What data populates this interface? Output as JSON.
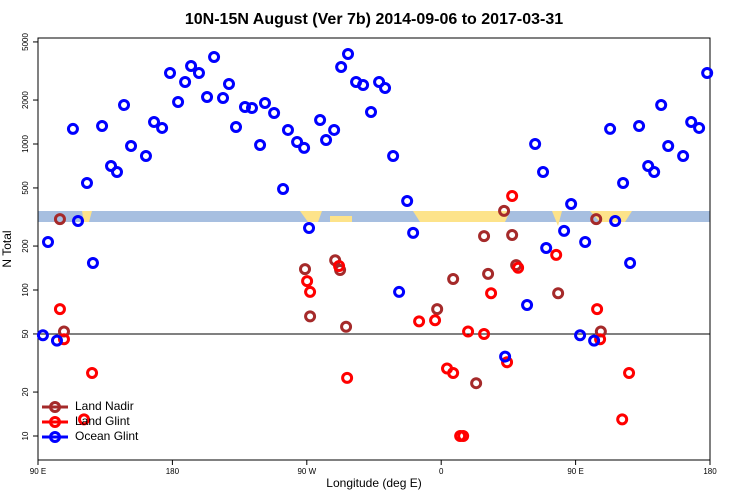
{
  "chart_data": {
    "type": "scatter",
    "title": "10N-15N August (Ver 7b)   2014-09-06 to 2017-03-31",
    "x_label": "Longitude (deg E)",
    "y_label": "N Total",
    "log_y": true,
    "xlim": [
      90,
      540
    ],
    "ylim": [
      6.85,
      5320
    ],
    "xticks": [
      {
        "value": 90,
        "label": "90 E"
      },
      180,
      {
        "value": 270,
        "label": "90 W"
      },
      {
        "value": 360,
        "label": "0"
      },
      {
        "value": 450,
        "label": "90 E"
      },
      180
    ],
    "xtick_values": [
      90,
      180,
      270,
      360,
      450,
      540
    ],
    "yticks": [
      10,
      20,
      50,
      100,
      200,
      500,
      1000,
      2000,
      5000
    ],
    "hline": 50,
    "legend": "bottom-left",
    "series": [
      {
        "name": "Land Nadir",
        "color": "#a52a2a",
        "x": [
          104.7,
          107.4,
          268.8,
          272.2,
          289.0,
          292.3,
          296.3,
          357.3,
          368.0,
          383.4,
          388.7,
          391.4,
          402.1,
          407.5,
          410.2,
          438.3,
          463.8,
          466.9
        ],
        "values": [
          306,
          52,
          139,
          66,
          160,
          137,
          56,
          74,
          119,
          23,
          234,
          129,
          348,
          238,
          148,
          95,
          306,
          52
        ]
      },
      {
        "name": "Land Glint",
        "color": "#ff0000",
        "x": [
          104.7,
          107.4,
          126.2,
          120.8,
          270.2,
          272.2,
          291.6,
          297.0,
          345.2,
          355.9,
          363.9,
          368.0,
          372.7,
          374.7,
          378.0,
          388.7,
          393.4,
          404.1,
          407.5,
          411.5,
          437.0,
          464.4,
          466.4,
          485.8,
          481.2
        ],
        "values": [
          74,
          46,
          27,
          13,
          115,
          97,
          146,
          25,
          61,
          62,
          29,
          27,
          10,
          10,
          52,
          50,
          95,
          32,
          440,
          142,
          174,
          74,
          46,
          27,
          13
        ]
      },
      {
        "name": "Ocean Glint",
        "color": "#0000ff",
        "x": [
          93.3,
          96.7,
          102.7,
          113.4,
          116.8,
          122.8,
          126.8,
          132.9,
          138.9,
          142.9,
          147.6,
          152.3,
          162.3,
          167.7,
          173.1,
          178.4,
          183.8,
          188.5,
          192.5,
          197.8,
          203.2,
          207.9,
          213.9,
          217.9,
          222.6,
          228.6,
          233.3,
          238.7,
          242.0,
          248.1,
          254.1,
          257.4,
          263.5,
          268.2,
          271.5,
          278.9,
          282.9,
          288.3,
          293.0,
          297.6,
          303.0,
          307.7,
          313.0,
          318.4,
          322.4,
          327.8,
          331.8,
          337.2,
          341.2,
          402.8,
          417.5,
          422.9,
          428.2,
          430.3,
          442.3,
          447.0,
          453.0,
          456.4,
          462.4,
          473.1,
          476.5,
          481.8,
          486.5,
          492.5,
          498.6,
          502.6,
          507.3,
          512.0,
          522.0,
          527.4,
          532.7,
          538.1
        ],
        "values": [
          49,
          213,
          45,
          1268,
          297,
          541,
          153,
          1328,
          707,
          643,
          1849,
          969,
          828,
          1415,
          1288,
          3063,
          1939,
          2659,
          3421,
          3063,
          2099,
          3945,
          2067,
          2576,
          1307,
          1792,
          1765,
          984,
          1908,
          1631,
          492,
          1248,
          1032,
          940,
          266,
          1459,
          1065,
          1248,
          3367,
          4134,
          2659,
          2535,
          1656,
          2659,
          2420,
          828,
          97,
          407,
          246,
          35,
          79,
          1000,
          643,
          194,
          254,
          388,
          49,
          213,
          45,
          1268,
          297,
          541,
          153,
          1328,
          707,
          643,
          1849,
          969,
          828,
          1415,
          1288,
          3063
        ]
      }
    ]
  }
}
